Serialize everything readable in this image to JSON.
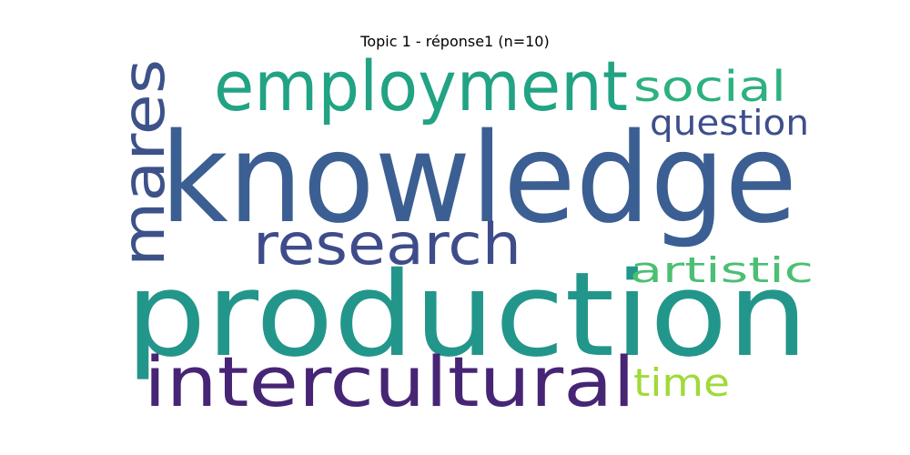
{
  "title": "Topic 1 - réponse1 (n=10)",
  "words": [
    {
      "text": "knowledge",
      "color": "#3b5f92"
    },
    {
      "text": "production",
      "color": "#23968b"
    },
    {
      "text": "intercultural",
      "color": "#472575"
    },
    {
      "text": "employment",
      "color": "#21a384"
    },
    {
      "text": "mares",
      "color": "#3d5289"
    },
    {
      "text": "research",
      "color": "#3f4c8a"
    },
    {
      "text": "social",
      "color": "#2db17f"
    },
    {
      "text": "question",
      "color": "#3e4f8a"
    },
    {
      "text": "artistic",
      "color": "#4bbf73"
    },
    {
      "text": "time",
      "color": "#a0da39"
    }
  ]
}
